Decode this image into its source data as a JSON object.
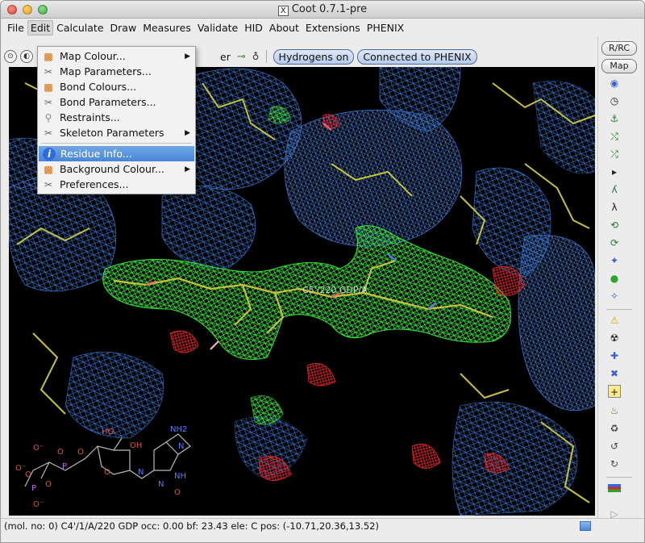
{
  "window": {
    "title": "Coot 0.7.1-pre",
    "title_icon": "X"
  },
  "menubar": {
    "items": [
      "File",
      "Edit",
      "Calculate",
      "Draw",
      "Measures",
      "Validate",
      "HID",
      "About",
      "Extensions",
      "PHENIX"
    ]
  },
  "toolbar": {
    "partial_label": "er",
    "hydrogens_label": "Hydrogens on",
    "phenix_label": "Connected to PHENIX"
  },
  "edit_menu": {
    "items": [
      {
        "label": "Map Colour...",
        "icon": "colour-palette-icon",
        "submenu": true
      },
      {
        "label": "Map Parameters...",
        "icon": "wrench-icon",
        "submenu": false
      },
      {
        "label": "Bond Colours...",
        "icon": "colour-palette-icon",
        "submenu": false
      },
      {
        "label": "Bond Parameters...",
        "icon": "wrench-icon",
        "submenu": false
      },
      {
        "label": "Restraints...",
        "icon": "restraints-icon",
        "submenu": false
      },
      {
        "label": "Skeleton Parameters",
        "icon": "wrench-icon",
        "submenu": true
      },
      {
        "label": "Residue Info...",
        "icon": "info-icon",
        "submenu": false,
        "highlighted": true
      },
      {
        "label": "Background Colour...",
        "icon": "colour-palette-icon",
        "submenu": true
      },
      {
        "label": "Preferences...",
        "icon": "wrench-icon",
        "submenu": false
      }
    ]
  },
  "viewer": {
    "residue_label": "C5'/220 GDP/A",
    "ligand_labels": [
      "HO",
      "OH",
      "NH2",
      "N",
      "NH",
      "N",
      "N",
      "O",
      "O",
      "O",
      "O",
      "O",
      "O",
      "P",
      "P",
      "O⁻",
      "O⁻",
      "O⁻"
    ]
  },
  "right_panel": {
    "rrc_label": "R/RC",
    "map_label": "Map"
  },
  "statusbar": {
    "text": "(mol. no: 0)  C4'/1/A/220 GDP occ:  0.00 bf: 23.43 ele:  C pos: (-10.71,20.36,13.52)"
  },
  "colors": {
    "mesh_blue": "#3a7ddc",
    "mesh_green": "#35e035",
    "mesh_red": "#e02222",
    "bond_yellow": "#c8c23a",
    "highlight": "#4a86d6"
  }
}
